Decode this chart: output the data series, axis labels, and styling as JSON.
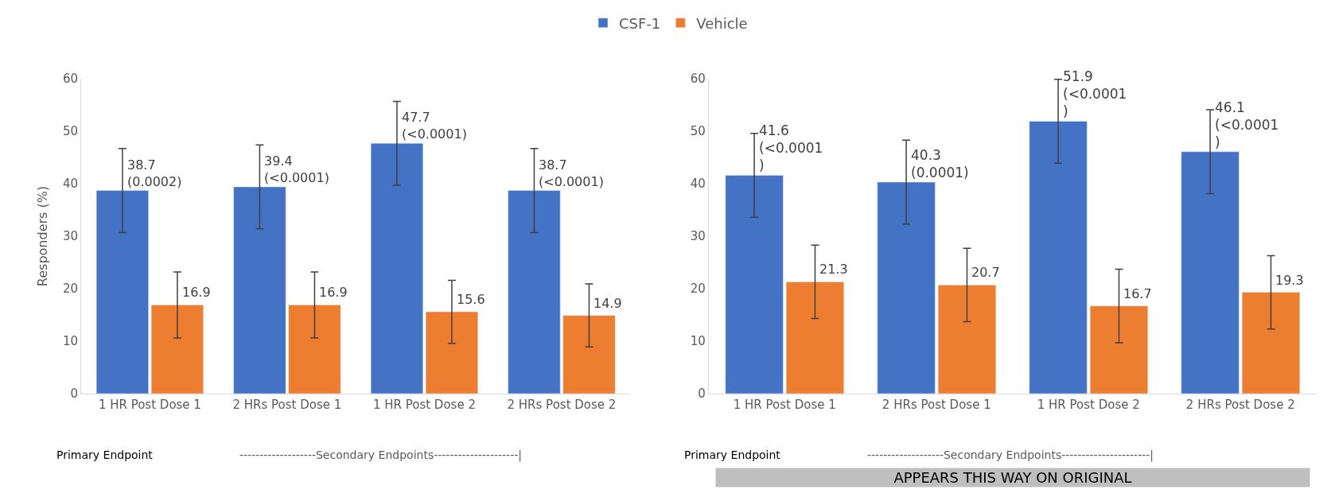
{
  "chart_data": [
    {
      "type": "bar",
      "ylabel": "Responders (%)",
      "categories": [
        "1 HR Post Dose 1",
        "2 HRs Post Dose 1",
        "1 HR Post Dose 2",
        "2 HRs Post Dose 2"
      ],
      "ylim": [
        0,
        60
      ],
      "yticks": [
        0,
        10,
        20,
        30,
        40,
        50,
        60
      ],
      "legend": "top",
      "series": [
        {
          "name": "CSF-1",
          "color": "#4472c4",
          "values": [
            38.7,
            39.4,
            47.7,
            38.7
          ],
          "errors": [
            8,
            8,
            8,
            8
          ],
          "value_labels": [
            "38.7\n(0.0002)",
            "39.4\n(<0.0001)",
            "47.7\n(<0.0001)",
            "38.7\n(<0.0001)"
          ]
        },
        {
          "name": "Vehicle",
          "color": "#ed7d31",
          "values": [
            16.9,
            16.9,
            15.6,
            14.9
          ],
          "errors": [
            6.3,
            6.3,
            6,
            6
          ],
          "value_labels": [
            "16.9",
            "16.9",
            "15.6",
            "14.9"
          ]
        }
      ],
      "annotations": [
        "Primary Endpoint",
        "-------------------Secondary Endpoints---------------------|"
      ]
    },
    {
      "type": "bar",
      "categories": [
        "1 HR Post Dose 1",
        "2 HRs Post Dose 1",
        "1 HR Post Dose 2",
        "2 HRs Post Dose 2"
      ],
      "ylim": [
        0,
        60
      ],
      "yticks": [
        0,
        10,
        20,
        30,
        40,
        50,
        60
      ],
      "series": [
        {
          "color": "#4472c4",
          "values": [
            41.6,
            40.3,
            51.9,
            46.1
          ],
          "errors": [
            8,
            8,
            8,
            8
          ],
          "value_labels": [
            "41.6\n(<0.0001\n)",
            "40.3\n(0.0001)",
            "51.9\n(<0.0001\n)",
            "46.1\n(<0.0001\n)"
          ]
        },
        {
          "color": "#ed7d31",
          "values": [
            21.3,
            20.7,
            16.7,
            19.3
          ],
          "errors": [
            7,
            7,
            7,
            7
          ],
          "value_labels": [
            "21.3",
            "20.7",
            "16.7",
            "19.3"
          ]
        }
      ],
      "annotations": [
        "Primary Endpoint",
        "-------------------Secondary Endpoints----------------------|",
        "APPEARS THIS WAY ON ORIGINAL"
      ]
    }
  ]
}
